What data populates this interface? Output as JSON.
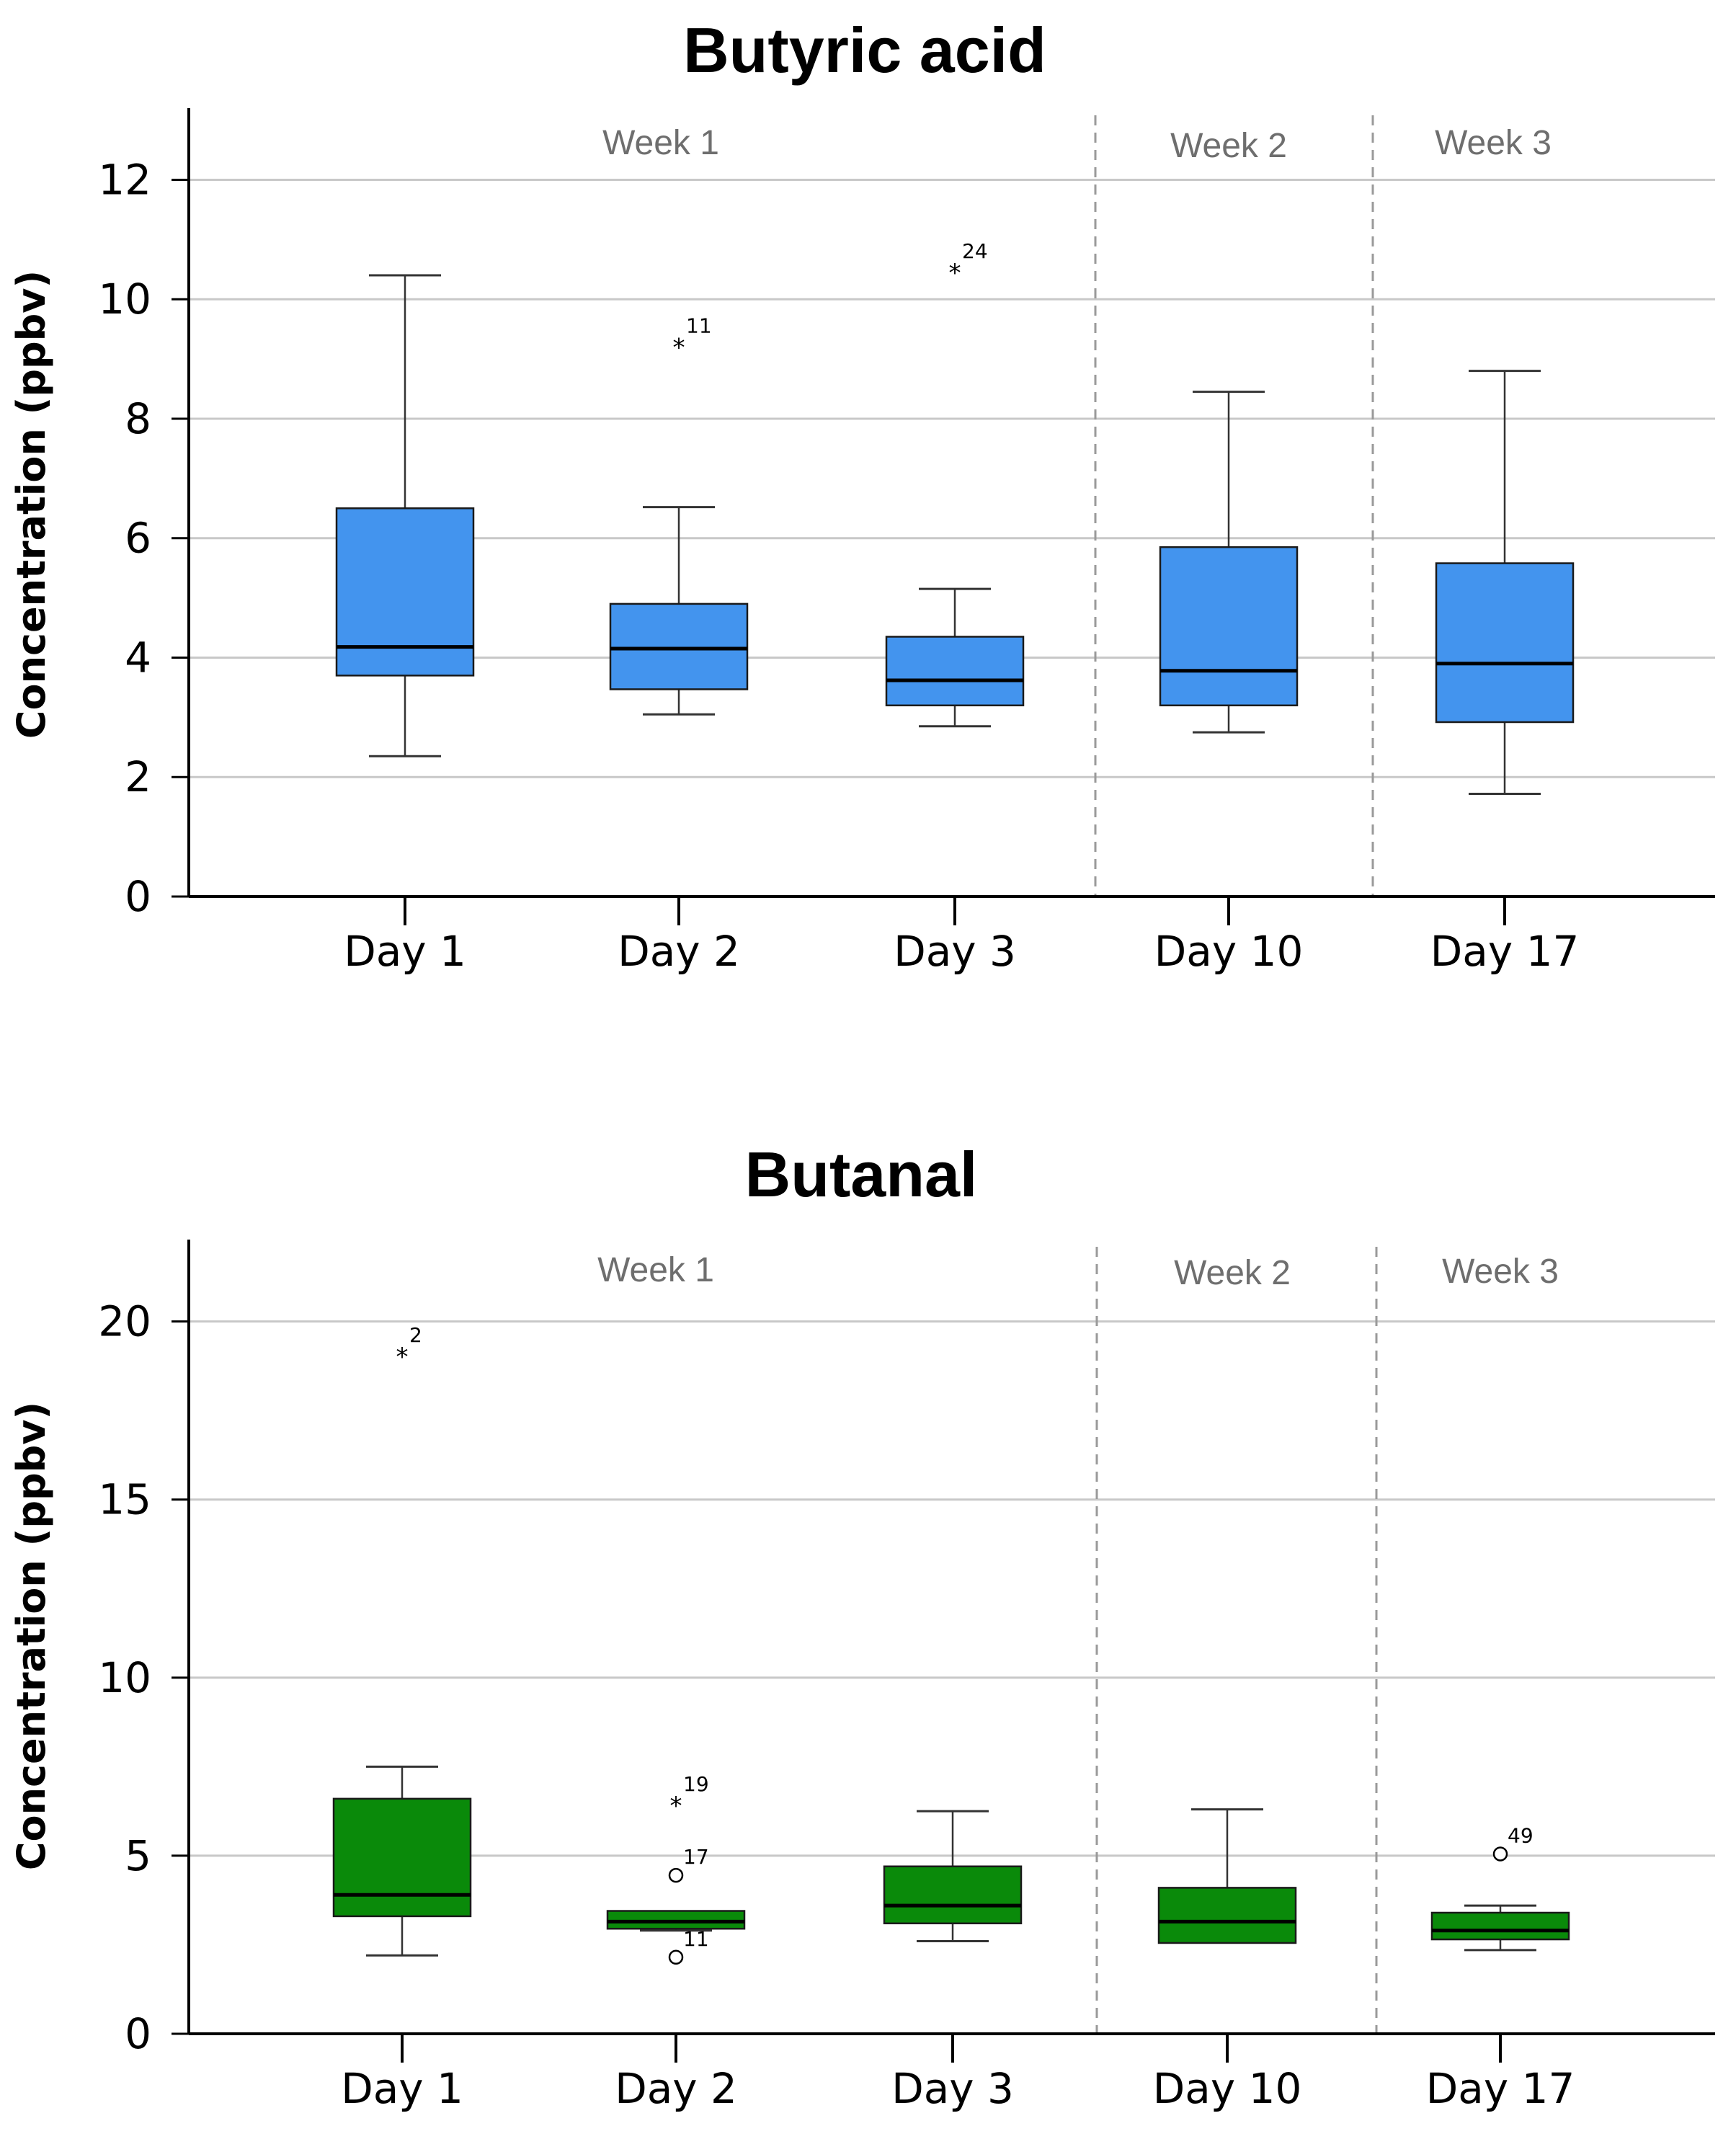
{
  "chart_data": [
    {
      "type": "box",
      "title": "Butyric acid",
      "ylabel": "Concentration (ppbv)",
      "xlabel": "",
      "ylim": [
        0,
        13.2
      ],
      "yticks": [
        0,
        2,
        4,
        6,
        8,
        10,
        12
      ],
      "grid": true,
      "fill": "#4394ee",
      "categories": [
        "Day 1",
        "Day 2",
        "Day 3",
        "Day 10",
        "Day 17"
      ],
      "boxes": [
        {
          "whisker_low": 2.35,
          "q1": 3.7,
          "median": 4.18,
          "q3": 6.5,
          "whisker_high": 10.4
        },
        {
          "whisker_low": 3.05,
          "q1": 3.47,
          "median": 4.15,
          "q3": 4.9,
          "whisker_high": 6.52
        },
        {
          "whisker_low": 2.85,
          "q1": 3.2,
          "median": 3.62,
          "q3": 4.35,
          "whisker_high": 5.15
        },
        {
          "whisker_low": 2.75,
          "q1": 3.2,
          "median": 3.78,
          "q3": 5.85,
          "whisker_high": 8.45
        },
        {
          "whisker_low": 1.72,
          "q1": 2.92,
          "median": 3.9,
          "q3": 5.58,
          "whisker_high": 8.8
        }
      ],
      "outliers": [
        {
          "category": "Day 2",
          "value": 9.25,
          "marker": "star",
          "label": "11"
        },
        {
          "category": "Day 3",
          "value": 10.5,
          "marker": "star",
          "label": "24"
        }
      ],
      "week_labels": [
        "Week 1",
        "Week 2",
        "Week 3"
      ],
      "week_dividers_after": [
        "Day 3",
        "Day 10"
      ]
    },
    {
      "type": "box",
      "title": "Butanal",
      "ylabel": "Concentration (ppbv)",
      "xlabel": "",
      "ylim": [
        0,
        22.3
      ],
      "yticks": [
        0,
        5,
        10,
        15,
        20
      ],
      "grid": true,
      "fill": "#0a8a0a",
      "categories": [
        "Day 1",
        "Day 2",
        "Day 3",
        "Day 10",
        "Day 17"
      ],
      "boxes": [
        {
          "whisker_low": 2.2,
          "q1": 3.3,
          "median": 3.9,
          "q3": 6.6,
          "whisker_high": 7.5
        },
        {
          "whisker_low": 2.9,
          "q1": 2.95,
          "median": 3.15,
          "q3": 3.45,
          "whisker_high": 3.45
        },
        {
          "whisker_low": 2.6,
          "q1": 3.1,
          "median": 3.6,
          "q3": 4.7,
          "whisker_high": 6.25
        },
        {
          "whisker_low": 2.55,
          "q1": 2.55,
          "median": 3.15,
          "q3": 4.1,
          "whisker_high": 6.3
        },
        {
          "whisker_low": 2.35,
          "q1": 2.65,
          "median": 2.9,
          "q3": 3.4,
          "whisker_high": 3.6
        }
      ],
      "outliers": [
        {
          "category": "Day 1",
          "value": 19.1,
          "marker": "star",
          "label": "2"
        },
        {
          "category": "Day 2",
          "value": 6.5,
          "marker": "star",
          "label": "19"
        },
        {
          "category": "Day 2",
          "value": 4.45,
          "marker": "circle",
          "label": "17"
        },
        {
          "category": "Day 2",
          "value": 2.15,
          "marker": "circle",
          "label": "11"
        },
        {
          "category": "Day 17",
          "value": 5.05,
          "marker": "circle",
          "label": "49"
        }
      ],
      "week_labels": [
        "Week 1",
        "Week 2",
        "Week 3"
      ],
      "week_dividers_after": [
        "Day 3",
        "Day 10"
      ]
    }
  ]
}
